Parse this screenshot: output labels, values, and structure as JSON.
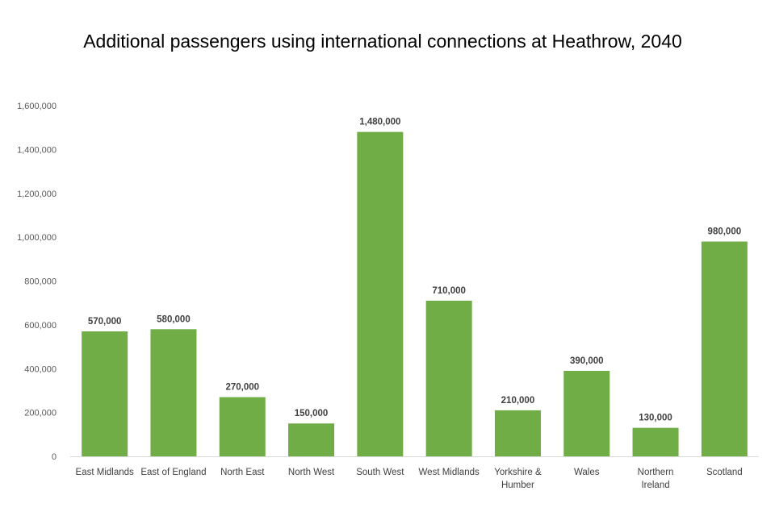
{
  "chart_data": {
    "type": "bar",
    "title": "Additional passengers using international connections at Heathrow, 2040",
    "xlabel": "",
    "ylabel": "",
    "categories": [
      [
        "East Midlands"
      ],
      [
        "East of England"
      ],
      [
        "North East"
      ],
      [
        "North West"
      ],
      [
        "South West"
      ],
      [
        "West Midlands"
      ],
      [
        "Yorkshire &",
        "Humber"
      ],
      [
        "Wales"
      ],
      [
        "Northern",
        "Ireland"
      ],
      [
        "Scotland"
      ]
    ],
    "values": [
      570000,
      580000,
      270000,
      150000,
      1480000,
      710000,
      210000,
      390000,
      130000,
      980000
    ],
    "data_labels": [
      "570,000",
      "580,000",
      "270,000",
      "150,000",
      "1,480,000",
      "710,000",
      "210,000",
      "390,000",
      "130,000",
      "980,000"
    ],
    "ylim": [
      0,
      1600000
    ],
    "yticks": [
      0,
      200000,
      400000,
      600000,
      800000,
      1000000,
      1200000,
      1400000,
      1600000
    ],
    "ytick_labels": [
      "0",
      "200,000",
      "400,000",
      "600,000",
      "800,000",
      "1,000,000",
      "1,200,000",
      "1,400,000",
      "1,600,000"
    ],
    "grid": false,
    "legend": "none",
    "bar_color": "#70ad47",
    "axis_color": "#d9d9d9"
  }
}
